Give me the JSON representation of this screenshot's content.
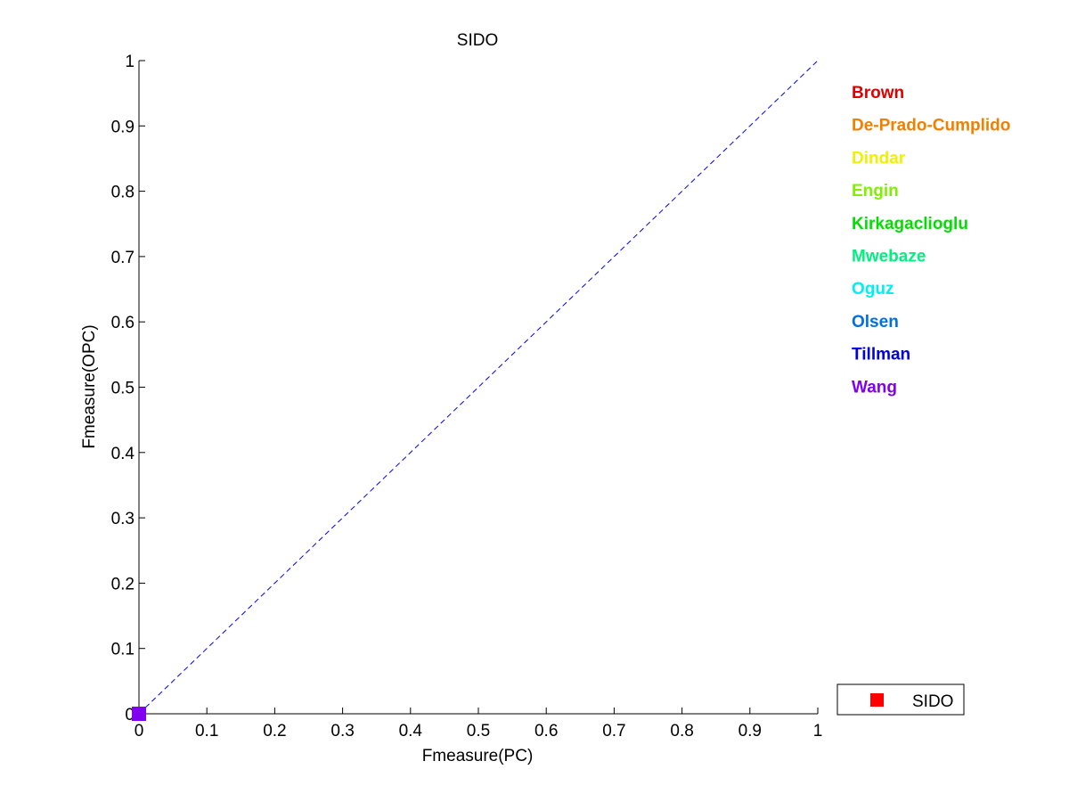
{
  "chart_data": {
    "type": "scatter",
    "title": "SIDO",
    "xlabel": "Fmeasure(PC)",
    "ylabel": "Fmeasure(OPC)",
    "xlim": [
      0,
      1
    ],
    "ylim": [
      0,
      1
    ],
    "xticks": [
      "0",
      "0.1",
      "0.2",
      "0.3",
      "0.4",
      "0.5",
      "0.6",
      "0.7",
      "0.8",
      "0.9",
      "1"
    ],
    "yticks": [
      "0",
      "0.1",
      "0.2",
      "0.3",
      "0.4",
      "0.5",
      "0.6",
      "0.7",
      "0.8",
      "0.9",
      "1"
    ],
    "grid": false,
    "reference_line": {
      "style": "dashed",
      "color": "#0000ff",
      "x": [
        0,
        1
      ],
      "y": [
        0,
        1
      ]
    },
    "series": [
      {
        "name": "Brown",
        "color": "#e00000",
        "x": [
          0
        ],
        "y": [
          0
        ]
      },
      {
        "name": "De-Prado-Cumplido",
        "color": "#f08000",
        "x": [
          0
        ],
        "y": [
          0
        ]
      },
      {
        "name": "Dindar",
        "color": "#f0f000",
        "x": [
          0
        ],
        "y": [
          0
        ]
      },
      {
        "name": "Engin",
        "color": "#80f000",
        "x": [
          0
        ],
        "y": [
          0
        ]
      },
      {
        "name": "Kirkagaclioglu",
        "color": "#00e000",
        "x": [
          0
        ],
        "y": [
          0
        ]
      },
      {
        "name": "Mwebaze",
        "color": "#00f080",
        "x": [
          0
        ],
        "y": [
          0
        ]
      },
      {
        "name": "Oguz",
        "color": "#00f0f0",
        "x": [
          0
        ],
        "y": [
          0
        ]
      },
      {
        "name": "Olsen",
        "color": "#0070e0",
        "x": [
          0
        ],
        "y": [
          0
        ]
      },
      {
        "name": "Tillman",
        "color": "#0000e0",
        "x": [
          0
        ],
        "y": [
          0
        ]
      },
      {
        "name": "Wang",
        "color": "#8000f0",
        "x": [
          0
        ],
        "y": [
          0
        ]
      }
    ],
    "marker": "square",
    "legend": {
      "placement": "bottom-right",
      "entries": [
        {
          "label": "SIDO",
          "color": "#ff0000",
          "marker": "square"
        }
      ]
    }
  }
}
